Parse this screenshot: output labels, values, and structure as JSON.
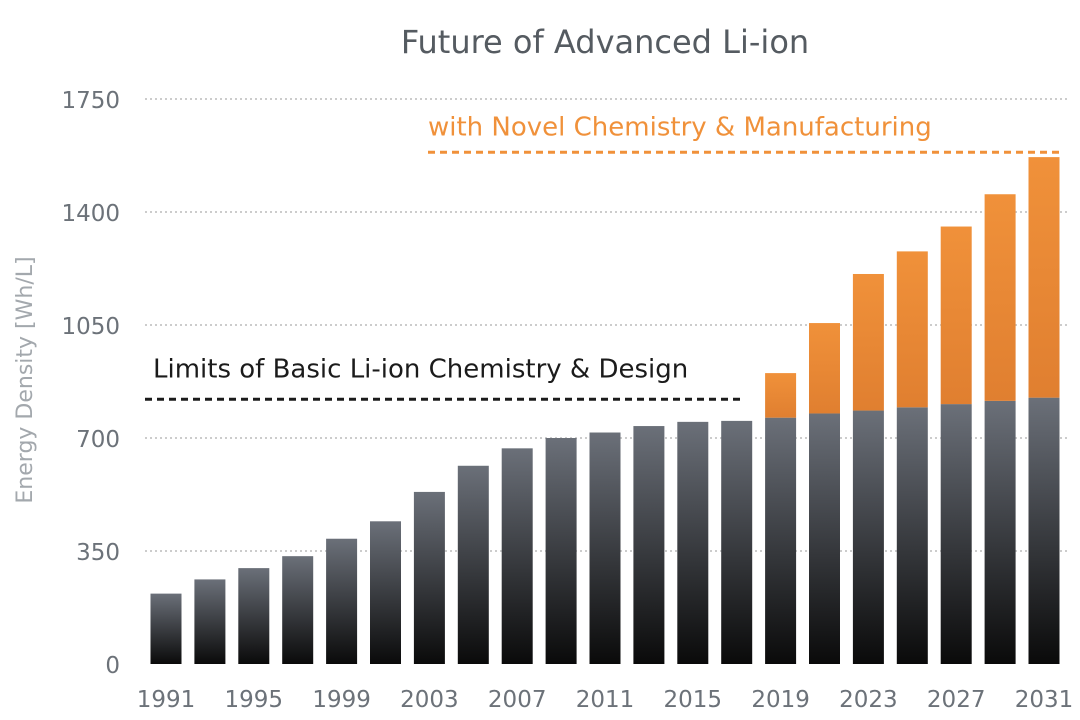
{
  "chart_data": {
    "type": "bar",
    "stacked": true,
    "title": "Future of Advanced Li-ion",
    "xlabel": "",
    "ylabel": "Energy Density [Wh/L]",
    "ylim": [
      0,
      1750
    ],
    "yticks": [
      0,
      350,
      700,
      1050,
      1400,
      1750
    ],
    "grid": true,
    "categories": [
      "1991",
      "1993",
      "1995",
      "1997",
      "1999",
      "2001",
      "2003",
      "2005",
      "2007",
      "2009",
      "2011",
      "2013",
      "2015",
      "2017",
      "2019",
      "2021",
      "2023",
      "2025",
      "2027",
      "2029",
      "2031"
    ],
    "xtick_labels": [
      "1991",
      "1995",
      "1999",
      "2003",
      "2007",
      "2011",
      "2015",
      "2019",
      "2023",
      "2027",
      "2031"
    ],
    "series": [
      {
        "values": [
          218,
          262,
          297,
          334,
          388,
          442,
          533,
          614,
          668,
          700,
          717,
          737,
          750,
          753,
          763,
          776,
          785,
          795,
          805,
          815,
          825
        ],
        "color": "#2e3035"
      },
      {
        "values": [
          0,
          0,
          0,
          0,
          0,
          0,
          0,
          0,
          0,
          0,
          0,
          0,
          0,
          0,
          138,
          280,
          423,
          483,
          550,
          640,
          745
        ],
        "color": "#f0913a"
      }
    ],
    "annotations": [
      {
        "text": "Limits of Basic Li-ion Chemistry & Design",
        "y": 820,
        "color": "#1b1b1b"
      },
      {
        "text": "with Novel Chemistry & Manufacturing",
        "y": 1585,
        "color": "#f0913a"
      }
    ]
  }
}
